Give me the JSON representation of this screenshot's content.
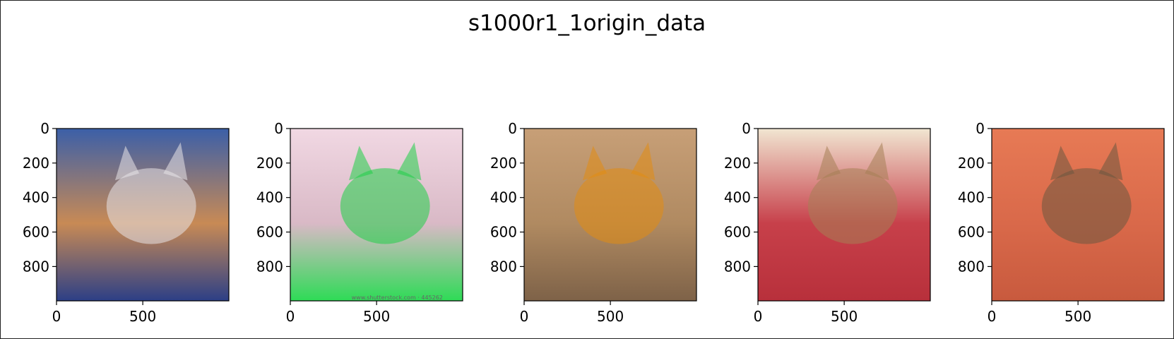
{
  "figure": {
    "title": "s1000r1_1origin_data"
  },
  "chart_data": [
    {
      "type": "image",
      "image": "orange-tabby-cat-on-blue-and-white-blanket",
      "xlim": [
        0,
        999
      ],
      "ylim": [
        999,
        0
      ],
      "xticks": [
        0,
        500
      ],
      "yticks": [
        0,
        200,
        400,
        600,
        800
      ],
      "colors": {
        "bg": "#c88a55",
        "top": "#3b5fa8",
        "accent": "#e7e4e8",
        "bottom": "#2c3f86"
      }
    },
    {
      "type": "image",
      "image": "abyssinian-cat-on-green-fabric-stock-photo",
      "xlim": [
        0,
        999
      ],
      "ylim": [
        999,
        0
      ],
      "xticks": [
        0,
        500
      ],
      "yticks": [
        0,
        200,
        400,
        600,
        800
      ],
      "watermark": "www.shutterstock.com · 445262",
      "colors": {
        "bg": "#d9b9c6",
        "top": "#f1d8e3",
        "accent": "#1fcf47",
        "bottom": "#2edb56"
      }
    },
    {
      "type": "image",
      "image": "close-up-tabby-cat-face-orange-eyes",
      "xlim": [
        0,
        999
      ],
      "ylim": [
        999,
        0
      ],
      "xticks": [
        0,
        500
      ],
      "yticks": [
        0,
        200,
        400,
        600,
        800
      ],
      "colors": {
        "bg": "#b08a61",
        "top": "#c79f77",
        "accent": "#e28d12",
        "bottom": "#7e6248"
      }
    },
    {
      "type": "image",
      "image": "abyssinian-cat-on-red-sofa-with-cushion",
      "xlim": [
        0,
        999
      ],
      "ylim": [
        999,
        0
      ],
      "xticks": [
        0,
        500
      ],
      "yticks": [
        0,
        200,
        400,
        600,
        800
      ],
      "colors": {
        "bg": "#c7404a",
        "top": "#f1e6d2",
        "accent": "#a57f55",
        "bottom": "#b8303b"
      }
    },
    {
      "type": "image",
      "image": "abyssinian-kittens-on-orange-blanket",
      "xlim": [
        0,
        999
      ],
      "ylim": [
        999,
        0
      ],
      "xticks": [
        0,
        500
      ],
      "yticks": [
        0,
        200,
        400,
        600,
        800
      ],
      "colors": {
        "bg": "#d9694a",
        "top": "#e77a55",
        "accent": "#6c5740",
        "bottom": "#c85a3e"
      }
    }
  ]
}
